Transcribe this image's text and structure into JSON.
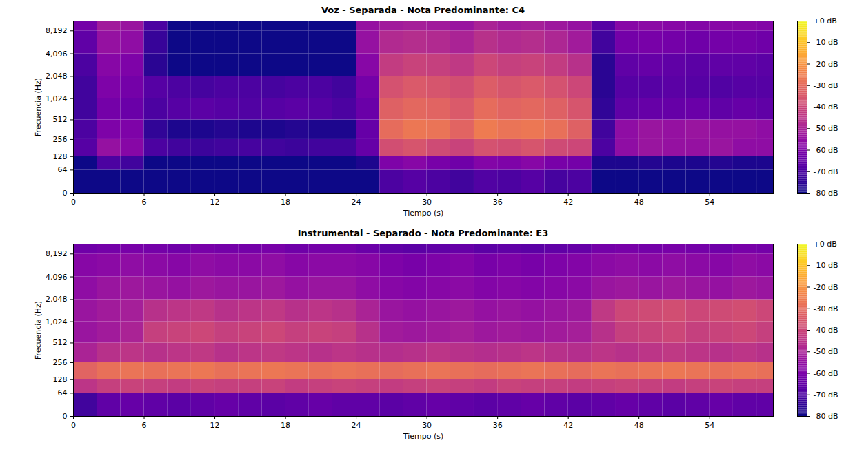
{
  "chart_data": [
    {
      "type": "heatmap",
      "title": "Voz - Separada - Nota Predominante: C4",
      "x_label": "Tiempo (s)",
      "y_label": "Frecuencia (Hz)",
      "color": "plasma",
      "log": "y",
      "xlim": [
        0,
        59.4
      ],
      "ylim": [
        0,
        11025
      ],
      "xticks": [
        0,
        6,
        12,
        18,
        24,
        30,
        36,
        42,
        48,
        54
      ],
      "yticks": [
        0,
        64,
        128,
        256,
        512,
        1024,
        2048,
        4096,
        8192
      ],
      "time_edges": [
        0,
        2,
        4,
        6,
        8,
        10,
        12,
        14,
        16,
        18,
        20,
        22,
        24,
        26,
        28,
        30,
        32,
        34,
        36,
        38,
        40,
        42,
        44,
        46,
        48,
        50,
        52,
        54,
        56,
        58,
        60
      ],
      "freq_edges": [
        0,
        64,
        128,
        256,
        512,
        1024,
        2048,
        4096,
        8192,
        11025
      ],
      "values": [
        [
          -80,
          -80,
          -80,
          -80,
          -80,
          -80,
          -80,
          -80,
          -80,
          -80,
          -80,
          -80,
          -80,
          -70,
          -68,
          -70,
          -72,
          -69,
          -70,
          -68,
          -71,
          -70,
          -80,
          -80,
          -80,
          -80,
          -80,
          -80,
          -80,
          -80
        ],
        [
          -80,
          -70,
          -72,
          -80,
          -80,
          -80,
          -80,
          -80,
          -80,
          -80,
          -80,
          -80,
          -78,
          -60,
          -58,
          -61,
          -63,
          -59,
          -60,
          -58,
          -61,
          -62,
          -78,
          -78,
          -77,
          -78,
          -78,
          -77,
          -78,
          -78
        ],
        [
          -68,
          -55,
          -58,
          -70,
          -72,
          -73,
          -72,
          -71,
          -72,
          -73,
          -72,
          -72,
          -65,
          -38,
          -36,
          -39,
          -41,
          -37,
          -38,
          -36,
          -39,
          -40,
          -70,
          -56,
          -54,
          -55,
          -55,
          -54,
          -56,
          -56
        ],
        [
          -70,
          -60,
          -60,
          -75,
          -78,
          -78,
          -77,
          -78,
          -78,
          -77,
          -78,
          -78,
          -65,
          -30,
          -27,
          -28,
          -32,
          -26,
          -28,
          -27,
          -29,
          -33,
          -72,
          -56,
          -54,
          -55,
          -54,
          -55,
          -55,
          -56
        ],
        [
          -72,
          -62,
          -64,
          -70,
          -68,
          -67,
          -68,
          -69,
          -68,
          -67,
          -68,
          -70,
          -64,
          -33,
          -31,
          -32,
          -35,
          -30,
          -32,
          -31,
          -33,
          -36,
          -75,
          -66,
          -65,
          -65,
          -64,
          -66,
          -65,
          -66
        ],
        [
          -72,
          -60,
          -62,
          -68,
          -70,
          -71,
          -70,
          -70,
          -71,
          -70,
          -70,
          -72,
          -62,
          -37,
          -35,
          -36,
          -38,
          -34,
          -36,
          -35,
          -37,
          -40,
          -76,
          -68,
          -68,
          -67,
          -68,
          -69,
          -68,
          -68
        ],
        [
          -70,
          -58,
          -60,
          -76,
          -80,
          -80,
          -80,
          -80,
          -80,
          -80,
          -80,
          -80,
          -58,
          -43,
          -41,
          -42,
          -44,
          -40,
          -42,
          -41,
          -43,
          -46,
          -76,
          -66,
          -65,
          -66,
          -67,
          -66,
          -66,
          -67
        ],
        [
          -66,
          -55,
          -56,
          -74,
          -80,
          -80,
          -80,
          -80,
          -80,
          -80,
          -80,
          -80,
          -55,
          -48,
          -47,
          -48,
          -50,
          -46,
          -48,
          -47,
          -49,
          -52,
          -72,
          -62,
          -61,
          -62,
          -63,
          -62,
          -62,
          -63
        ],
        [
          -62,
          -52,
          -54,
          -70,
          -80,
          -80,
          -80,
          -80,
          -80,
          -80,
          -80,
          -80,
          -55,
          -52,
          -51,
          -52,
          -54,
          -50,
          -52,
          -51,
          -53,
          -55,
          -68,
          -58,
          -57,
          -58,
          -59,
          -58,
          -58,
          -59
        ]
      ],
      "colorbar": {
        "lim": [
          -80,
          0
        ],
        "ticks": [
          {
            "value": 0,
            "label": "+0 dB"
          },
          {
            "value": -10,
            "label": "-10 dB"
          },
          {
            "value": -20,
            "label": "-20 dB"
          },
          {
            "value": -30,
            "label": "-30 dB"
          },
          {
            "value": -40,
            "label": "-40 dB"
          },
          {
            "value": -50,
            "label": "-50 dB"
          },
          {
            "value": -60,
            "label": "-60 dB"
          },
          {
            "value": -70,
            "label": "-70 dB"
          },
          {
            "value": -80,
            "label": "-80 dB"
          }
        ]
      }
    },
    {
      "type": "heatmap",
      "title": "Instrumental - Separado - Nota Predominante: E3",
      "x_label": "Tiempo (s)",
      "y_label": "Frecuencia (Hz)",
      "color": "plasma",
      "log": "y",
      "xlim": [
        0,
        59.4
      ],
      "ylim": [
        0,
        11025
      ],
      "xticks": [
        0,
        6,
        12,
        18,
        24,
        30,
        36,
        42,
        48,
        54
      ],
      "yticks": [
        0,
        64,
        128,
        256,
        512,
        1024,
        2048,
        4096,
        8192
      ],
      "time_edges": [
        0,
        2,
        4,
        6,
        8,
        10,
        12,
        14,
        16,
        18,
        20,
        22,
        24,
        26,
        28,
        30,
        32,
        34,
        36,
        38,
        40,
        42,
        44,
        46,
        48,
        50,
        52,
        54,
        56,
        58,
        60
      ],
      "freq_edges": [
        0,
        64,
        128,
        256,
        512,
        1024,
        2048,
        4096,
        8192,
        11025
      ],
      "values": [
        [
          -72,
          -66,
          -65,
          -66,
          -67,
          -66,
          -65,
          -66,
          -67,
          -66,
          -65,
          -66,
          -66,
          -67,
          -66,
          -65,
          -66,
          -67,
          -66,
          -65,
          -66,
          -67,
          -66,
          -65,
          -66,
          -67,
          -66,
          -65,
          -66,
          -66
        ],
        [
          -45,
          -42,
          -41,
          -42,
          -43,
          -41,
          -42,
          -42,
          -41,
          -43,
          -42,
          -41,
          -42,
          -43,
          -42,
          -41,
          -42,
          -43,
          -41,
          -42,
          -42,
          -43,
          -42,
          -41,
          -42,
          -43,
          -42,
          -41,
          -42,
          -42
        ],
        [
          -32,
          -29,
          -28,
          -29,
          -28,
          -27,
          -29,
          -28,
          -27,
          -28,
          -29,
          -28,
          -29,
          -30,
          -29,
          -28,
          -29,
          -30,
          -29,
          -28,
          -29,
          -30,
          -28,
          -29,
          -28,
          -27,
          -28,
          -29,
          -28,
          -29
        ],
        [
          -50,
          -46,
          -45,
          -46,
          -45,
          -44,
          -46,
          -45,
          -44,
          -45,
          -46,
          -45,
          -46,
          -47,
          -46,
          -45,
          -46,
          -47,
          -46,
          -45,
          -46,
          -47,
          -45,
          -46,
          -45,
          -44,
          -45,
          -46,
          -45,
          -46
        ],
        [
          -54,
          -52,
          -50,
          -42,
          -41,
          -40,
          -42,
          -41,
          -40,
          -42,
          -41,
          -42,
          -46,
          -52,
          -53,
          -52,
          -51,
          -53,
          -52,
          -53,
          -52,
          -51,
          -46,
          -42,
          -41,
          -40,
          -42,
          -41,
          -40,
          -42
        ],
        [
          -54,
          -52,
          -51,
          -46,
          -45,
          -44,
          -46,
          -45,
          -44,
          -46,
          -45,
          -46,
          -50,
          -54,
          -55,
          -54,
          -53,
          -55,
          -54,
          -55,
          -54,
          -53,
          -44,
          -40,
          -39,
          -38,
          -40,
          -39,
          -38,
          -40
        ],
        [
          -56,
          -54,
          -53,
          -54,
          -55,
          -53,
          -54,
          -54,
          -53,
          -55,
          -54,
          -54,
          -56,
          -58,
          -59,
          -58,
          -57,
          -59,
          -58,
          -59,
          -58,
          -57,
          -54,
          -53,
          -54,
          -53,
          -54,
          -55,
          -53,
          -54
        ],
        [
          -58,
          -57,
          -56,
          -57,
          -58,
          -56,
          -57,
          -57,
          -56,
          -58,
          -57,
          -57,
          -58,
          -60,
          -61,
          -60,
          -59,
          -61,
          -60,
          -61,
          -60,
          -59,
          -57,
          -56,
          -57,
          -56,
          -57,
          -58,
          -56,
          -57
        ],
        [
          -63,
          -62,
          -61,
          -62,
          -63,
          -61,
          -62,
          -62,
          -61,
          -63,
          -62,
          -62,
          -64,
          -66,
          -67,
          -66,
          -65,
          -67,
          -66,
          -67,
          -66,
          -65,
          -62,
          -61,
          -62,
          -61,
          -62,
          -63,
          -61,
          -62
        ]
      ],
      "colorbar": {
        "lim": [
          -80,
          0
        ],
        "ticks": [
          {
            "value": 0,
            "label": "+0 dB"
          },
          {
            "value": -10,
            "label": "-10 dB"
          },
          {
            "value": -20,
            "label": "-20 dB"
          },
          {
            "value": -30,
            "label": "-30 dB"
          },
          {
            "value": -40,
            "label": "-40 dB"
          },
          {
            "value": -50,
            "label": "-50 dB"
          },
          {
            "value": -60,
            "label": "-60 dB"
          },
          {
            "value": -70,
            "label": "-70 dB"
          },
          {
            "value": -80,
            "label": "-80 dB"
          }
        ]
      }
    }
  ]
}
